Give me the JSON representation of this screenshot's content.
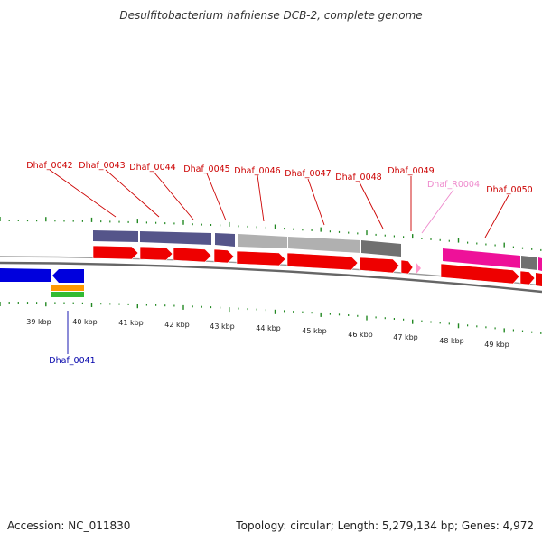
{
  "title": "Desulfitobacterium hafniense DCB-2, complete genome",
  "footer": {
    "accession_label": "Accession:",
    "accession": "NC_011830",
    "topology_label": "Topology:",
    "topology": "circular",
    "length_label": "Length:",
    "length": "5,279,134 bp",
    "genes_label": "Genes:",
    "genes": "4,972"
  },
  "colors": {
    "label_red": "#cc0000",
    "label_pink": "#ee88cc",
    "label_blue": "#0000aa",
    "tick_green": "#228822",
    "arrow_red": "#ee0000",
    "arrow_blue": "#0000dd",
    "arrow_magenta": "#ee1199",
    "bar_purple": "#55558a",
    "bar_lightgray": "#b0b0b0",
    "bar_darkgray": "#707070",
    "bar_orange": "#ff9900",
    "bar_green": "#33bb33",
    "backbone": "#888888"
  },
  "kbp_labels": [
    "39 kbp",
    "40 kbp",
    "41 kbp",
    "42 kbp",
    "43 kbp",
    "44 kbp",
    "45 kbp",
    "46 kbp",
    "47 kbp",
    "48 kbp",
    "49 kbp"
  ],
  "gene_labels": [
    {
      "name": "Dhaf_0041",
      "color": "blue"
    },
    {
      "name": "Dhaf_0042",
      "color": "red"
    },
    {
      "name": "Dhaf_0043",
      "color": "red"
    },
    {
      "name": "Dhaf_0044",
      "color": "red"
    },
    {
      "name": "Dhaf_0045",
      "color": "red"
    },
    {
      "name": "Dhaf_0046",
      "color": "red"
    },
    {
      "name": "Dhaf_0047",
      "color": "red"
    },
    {
      "name": "Dhaf_0048",
      "color": "red"
    },
    {
      "name": "Dhaf_0049",
      "color": "red"
    },
    {
      "name": "Dhaf_R0004",
      "color": "pink"
    },
    {
      "name": "Dhaf_0050",
      "color": "red"
    }
  ]
}
